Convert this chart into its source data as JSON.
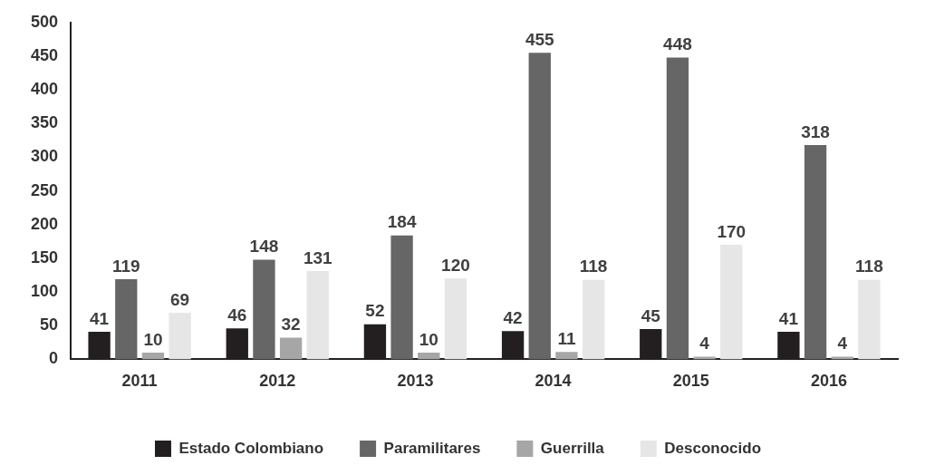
{
  "chart_data": {
    "type": "bar",
    "categories": [
      "2011",
      "2012",
      "2013",
      "2014",
      "2015",
      "2016"
    ],
    "series": [
      {
        "name": "Estado Colombiano",
        "color": "#231f20",
        "values": [
          41,
          46,
          52,
          42,
          45,
          41
        ]
      },
      {
        "name": "Paramilitares",
        "color": "#666666",
        "values": [
          119,
          148,
          184,
          455,
          448,
          318
        ]
      },
      {
        "name": "Guerrilla",
        "color": "#a6a6a6",
        "values": [
          10,
          32,
          10,
          11,
          4,
          4
        ]
      },
      {
        "name": "Desconocido",
        "color": "#e6e6e6",
        "values": [
          69,
          131,
          120,
          118,
          170,
          118
        ]
      }
    ],
    "ylim": [
      0,
      500
    ],
    "yticks": [
      0,
      50,
      100,
      150,
      200,
      250,
      300,
      350,
      400,
      450,
      500
    ],
    "grid": false,
    "legend": "bottom",
    "data_labels": true
  }
}
